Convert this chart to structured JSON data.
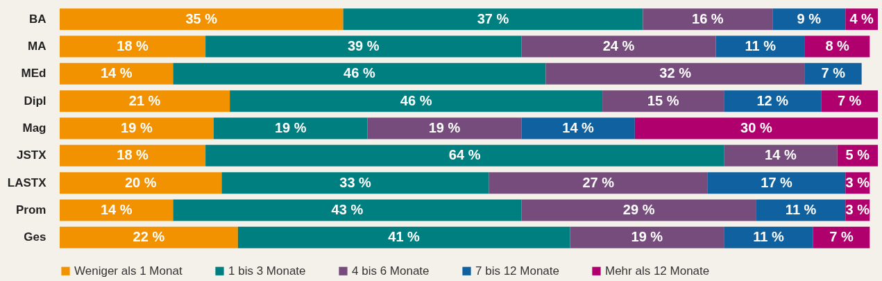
{
  "chart_data": {
    "type": "bar",
    "orientation": "horizontal",
    "stacked": true,
    "legend": "bottom",
    "grid": false,
    "tick_labels": "y",
    "categories": [
      "BA",
      "MA",
      "MEd",
      "Dipl",
      "Mag",
      "JSTX",
      "LASTX",
      "Prom",
      "Ges"
    ],
    "series": [
      {
        "name": "Weniger als 1 Monat",
        "color": "#f39200",
        "values": [
          35,
          18,
          14,
          21,
          19,
          18,
          20,
          14,
          22
        ],
        "value_labels": [
          "35 %",
          "18 %",
          "14 %",
          "21 %",
          "19 %",
          "18 %",
          "20 %",
          "14 %",
          "22 %"
        ]
      },
      {
        "name": "1 bis 3 Monate",
        "color": "#007f80",
        "values": [
          37,
          39,
          46,
          46,
          19,
          64,
          33,
          43,
          41
        ],
        "value_labels": [
          "37 %",
          "39 %",
          "46 %",
          "46 %",
          "19 %",
          "64 %",
          "33 %",
          "43 %",
          "41 %"
        ]
      },
      {
        "name": "4 bis 6 Monate",
        "color": "#764c7c",
        "values": [
          16,
          24,
          32,
          15,
          19,
          14,
          27,
          29,
          19
        ],
        "value_labels": [
          "16 %",
          "24 %",
          "32 %",
          "15 %",
          "19 %",
          "14 %",
          "27 %",
          "29 %",
          "19 %"
        ]
      },
      {
        "name": "7 bis 12 Monate",
        "color": "#1061a0",
        "values": [
          9,
          11,
          7,
          12,
          14,
          null,
          17,
          11,
          11
        ],
        "value_labels": [
          "9 %",
          "11 %",
          "7 %",
          "12 %",
          "14 %",
          null,
          "17 %",
          "11 %",
          "11 %"
        ]
      },
      {
        "name": "Mehr als 12 Monate",
        "color": "#b0006e",
        "values": [
          4,
          8,
          null,
          7,
          30,
          5,
          3,
          3,
          7
        ],
        "value_labels": [
          "4 %",
          "8 %",
          null,
          "7 %",
          "30 %",
          "5 %",
          "3 %",
          "3 %",
          "7 %"
        ]
      }
    ]
  }
}
